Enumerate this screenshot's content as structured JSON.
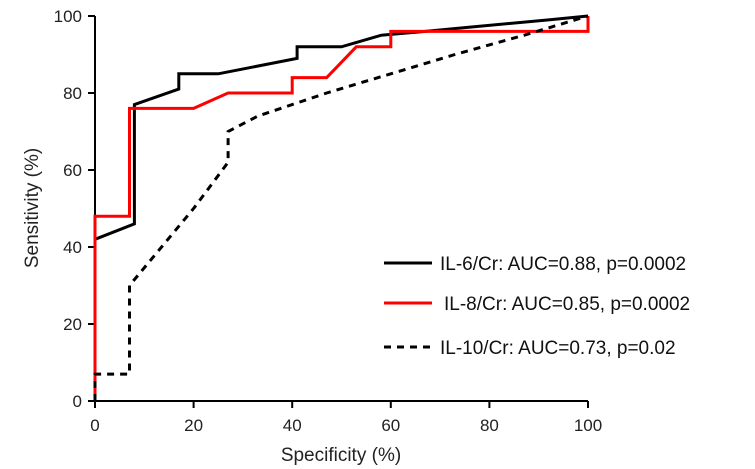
{
  "chart_data": {
    "type": "line",
    "title": "",
    "xlabel": "Specificity (%)",
    "ylabel": "Sensitivity (%)",
    "xlim": [
      0,
      100
    ],
    "ylim": [
      0,
      100
    ],
    "xticks": [
      "0",
      "20",
      "40",
      "60",
      "80",
      "100"
    ],
    "yticks": [
      "0",
      "20",
      "40",
      "60",
      "80",
      "100"
    ],
    "grid": false,
    "legend_position": "bottom-right",
    "series": [
      {
        "name": "IL-6/Cr: AUC=0.88, p=0.0002",
        "color": "#000000",
        "style": "solid",
        "x": [
          0,
          0,
          8,
          8,
          17,
          17,
          25,
          41,
          41,
          50,
          58,
          67,
          75,
          92,
          100
        ],
        "y": [
          0,
          42,
          46,
          77,
          81,
          85,
          85,
          89,
          92,
          92,
          95,
          96,
          97,
          99,
          100
        ]
      },
      {
        "name": "IL-8/Cr: AUC=0.85, p=0.0002",
        "color": "#ff0000",
        "style": "solid",
        "x": [
          0,
          0,
          7,
          7,
          20,
          27,
          40,
          40,
          47,
          53,
          60,
          60,
          100,
          100
        ],
        "y": [
          0,
          48,
          48,
          76,
          76,
          80,
          80,
          84,
          84,
          92,
          92,
          96,
          96,
          100
        ]
      },
      {
        "name": "IL-10/Cr: AUC=0.73, p=0.02",
        "color": "#000000",
        "style": "dashed",
        "x": [
          0,
          0,
          7,
          7,
          20,
          27,
          27,
          33,
          47,
          60,
          73,
          87,
          100
        ],
        "y": [
          0,
          7,
          7,
          30,
          50,
          62,
          70,
          74,
          80,
          85,
          90,
          95,
          100
        ]
      }
    ]
  }
}
